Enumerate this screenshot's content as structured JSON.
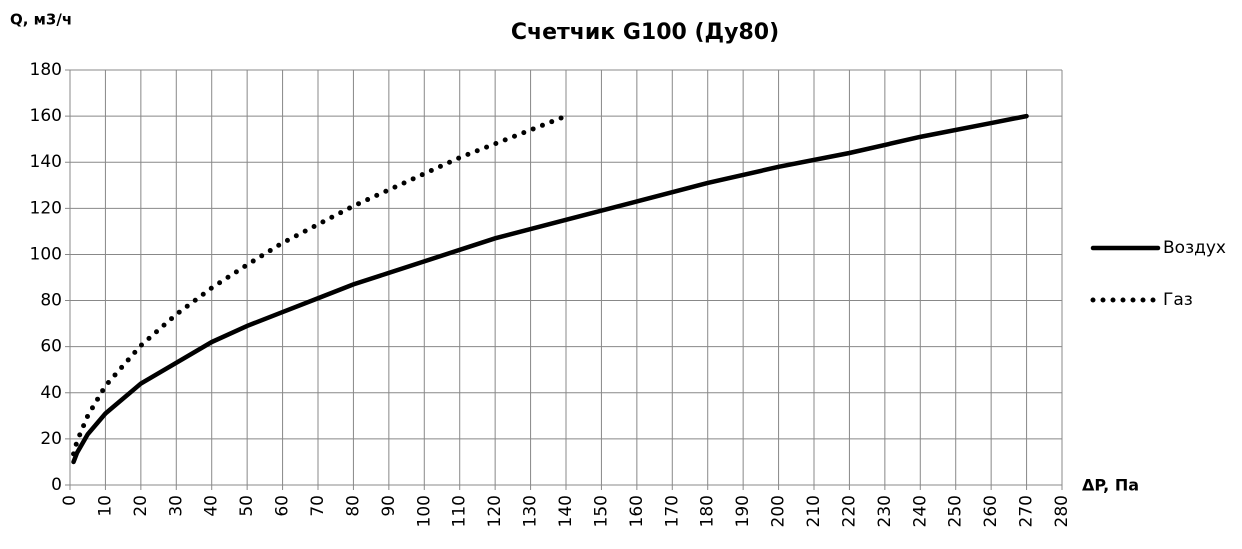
{
  "chart_data": {
    "type": "line",
    "title": "Счетчик G100 (Ду80)",
    "y_label": "Q, м3/ч",
    "x_label": "ΔP, Па",
    "series": [
      {
        "name": "Воздух",
        "color": "#000000",
        "line_style": "solid",
        "x": [
          1,
          2,
          5,
          10,
          20,
          30,
          40,
          50,
          60,
          70,
          80,
          90,
          100,
          120,
          140,
          160,
          180,
          200,
          220,
          240,
          260,
          270
        ],
        "values": [
          10,
          14,
          22,
          31,
          44,
          53,
          62,
          69,
          75,
          81,
          87,
          92,
          97,
          107,
          115,
          123,
          131,
          138,
          144,
          151,
          157,
          160
        ]
      },
      {
        "name": "Газ",
        "color": "#000000",
        "line_style": "dotted",
        "x": [
          1,
          2,
          5,
          10,
          20,
          30,
          40,
          50,
          60,
          70,
          80,
          90,
          100,
          110,
          120,
          130,
          140
        ],
        "values": [
          13.5,
          19,
          30,
          43,
          60.5,
          74,
          85.5,
          95.5,
          105,
          113,
          121,
          128,
          135,
          142,
          148,
          154,
          160
        ]
      }
    ],
    "xlim": [
      0,
      280
    ],
    "xticks": [
      0,
      10,
      20,
      30,
      40,
      50,
      60,
      70,
      80,
      90,
      100,
      110,
      120,
      130,
      140,
      150,
      160,
      170,
      180,
      190,
      200,
      210,
      220,
      230,
      240,
      250,
      260,
      270,
      280
    ],
    "ylim": [
      0,
      180
    ],
    "yticks": [
      0,
      20,
      40,
      60,
      80,
      100,
      120,
      140,
      160,
      180
    ],
    "grid": true,
    "legend": "right"
  }
}
